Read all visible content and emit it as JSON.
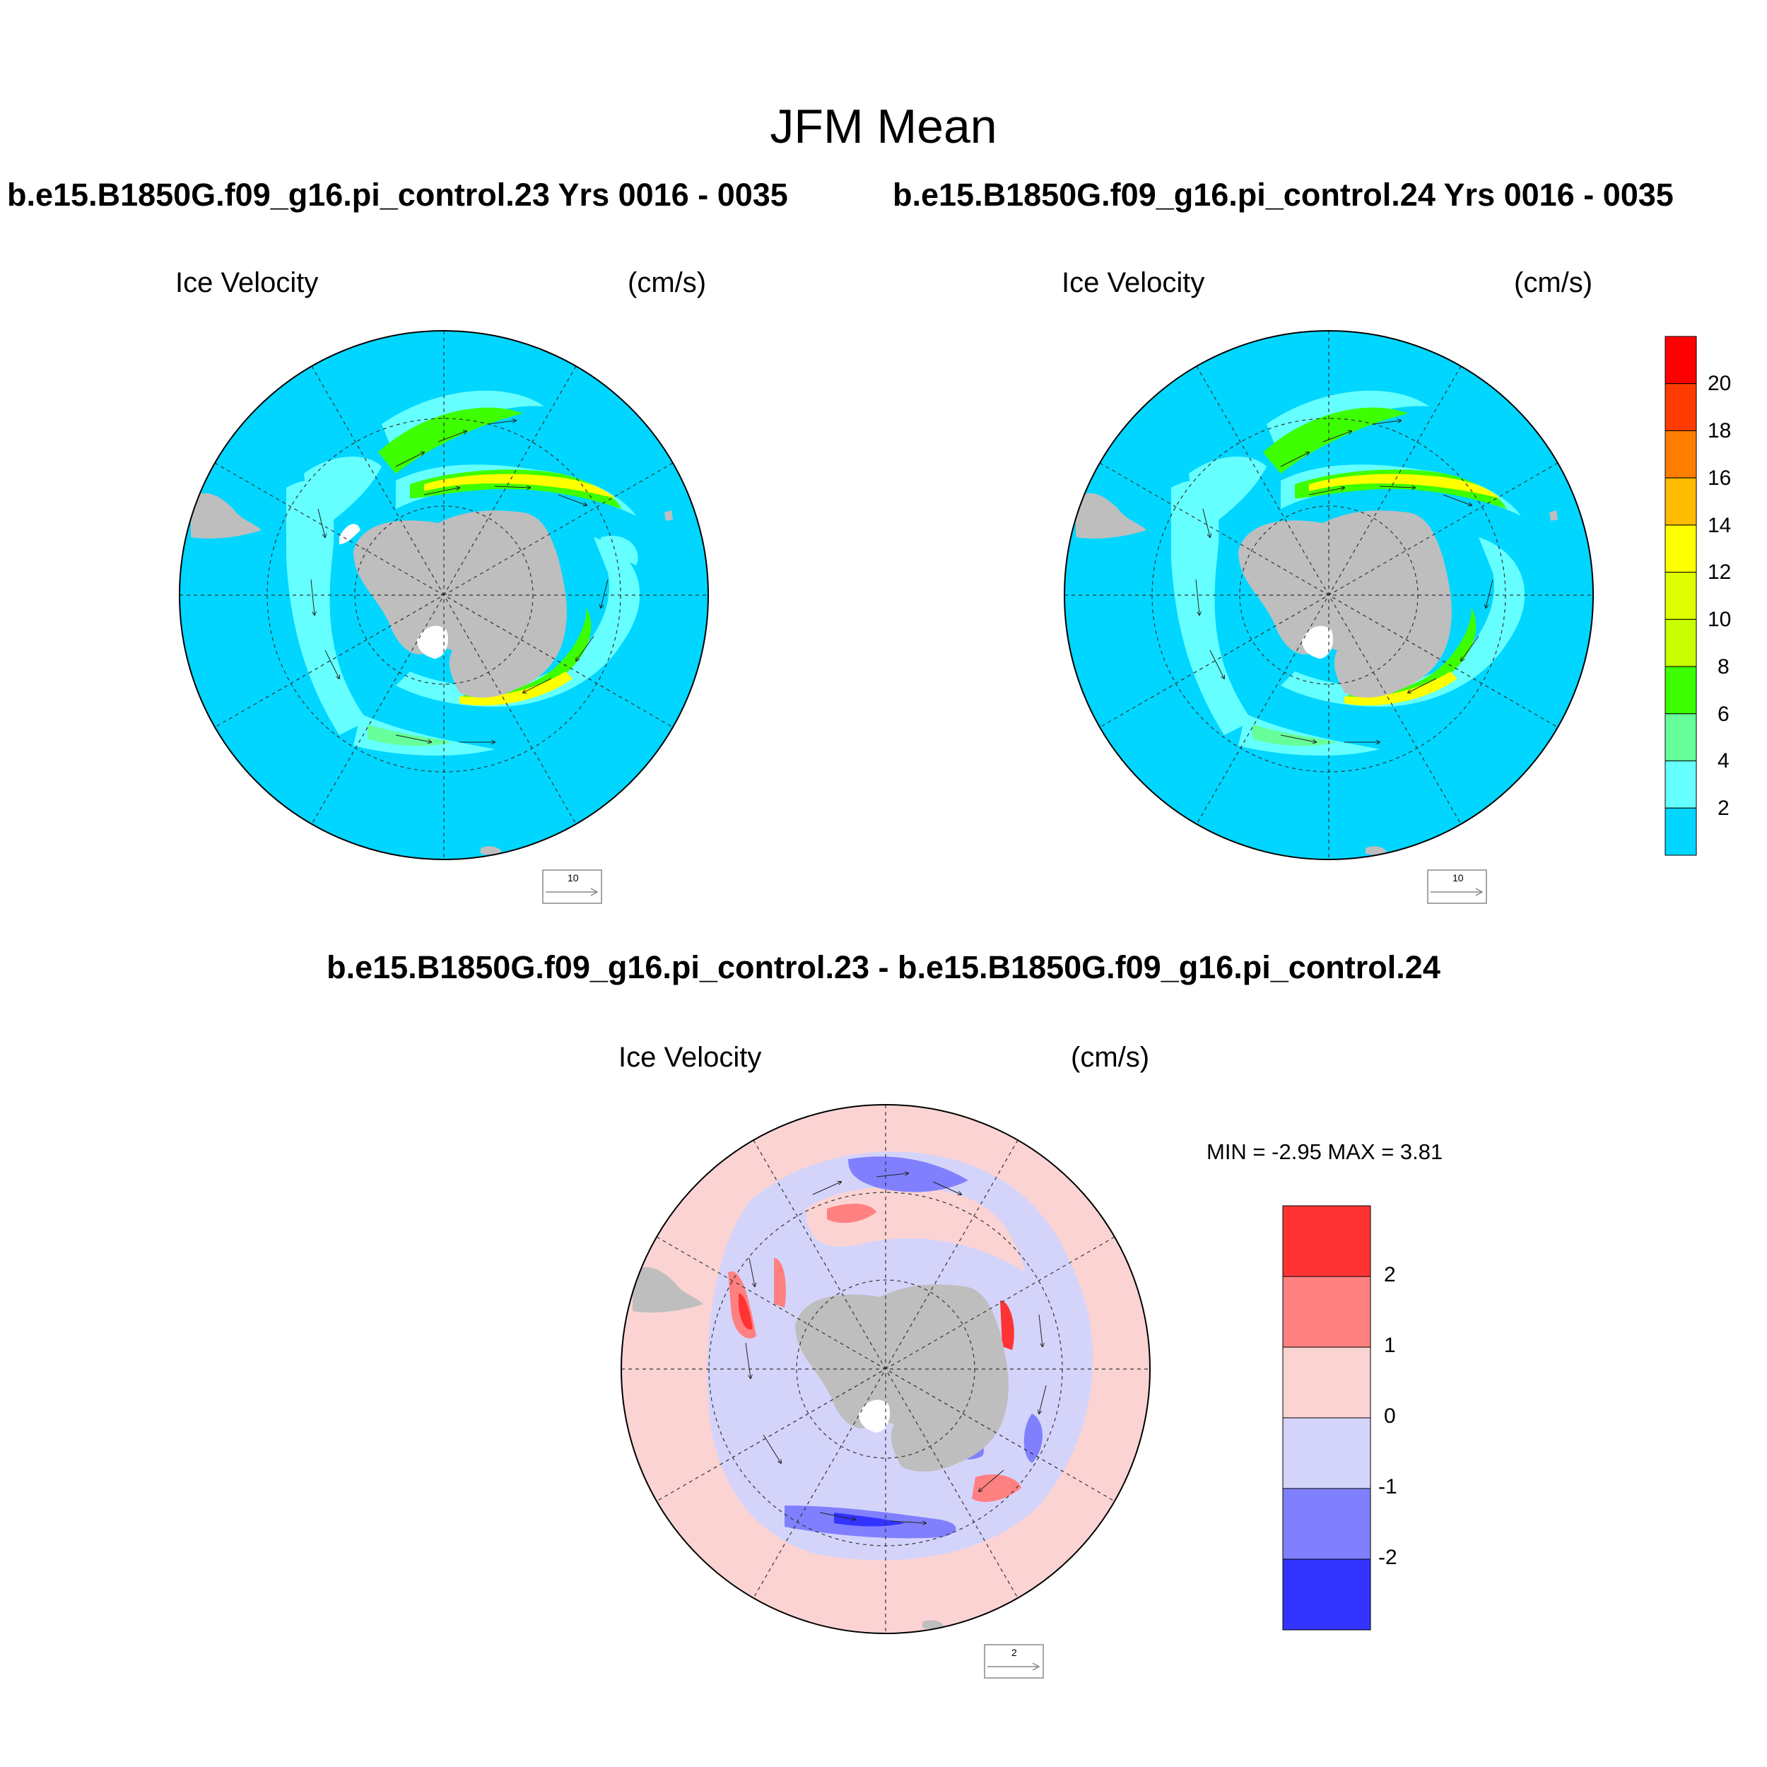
{
  "title": "JFM Mean",
  "panels": [
    {
      "case": "b.e15.B1850G.f09_g16.pi_control.23  Yrs 0016 - 0035",
      "variable": "Ice Velocity",
      "units": "(cm/s)",
      "ref_vector_label": "10"
    },
    {
      "case": "b.e15.B1850G.f09_g16.pi_control.24  Yrs 0016 - 0035",
      "variable": "Ice Velocity",
      "units": "(cm/s)",
      "ref_vector_label": "10"
    }
  ],
  "difference": {
    "title": "b.e15.B1850G.f09_g16.pi_control.23 - b.e15.B1850G.f09_g16.pi_control.24",
    "variable": "Ice Velocity",
    "units": "(cm/s)",
    "minmax": "MIN =  -2.95 MAX =   3.81",
    "ref_vector_label": "2"
  },
  "colorbar": {
    "labels": [
      "20",
      "18",
      "16",
      "14",
      "12",
      "10",
      "8",
      "6",
      "4",
      "2"
    ],
    "colors": [
      "#ff0000",
      "#ff3c00",
      "#ff7e00",
      "#ffbb00",
      "#ffff00",
      "#dfff00",
      "#c8ff00",
      "#3dff00",
      "#66ff99",
      "#66ffff",
      "#00d6ff"
    ]
  },
  "diff_colorbar": {
    "labels": [
      "2",
      "1",
      "0",
      "-1",
      "-2"
    ],
    "colors": [
      "#ff3333",
      "#ff8080",
      "#fbd3d3",
      "#d4d4fb",
      "#8080ff",
      "#3333ff"
    ]
  },
  "colors": {
    "ocean": "#00d6ff",
    "land": "#bebebe",
    "diff_background": "#fbd3d3"
  }
}
